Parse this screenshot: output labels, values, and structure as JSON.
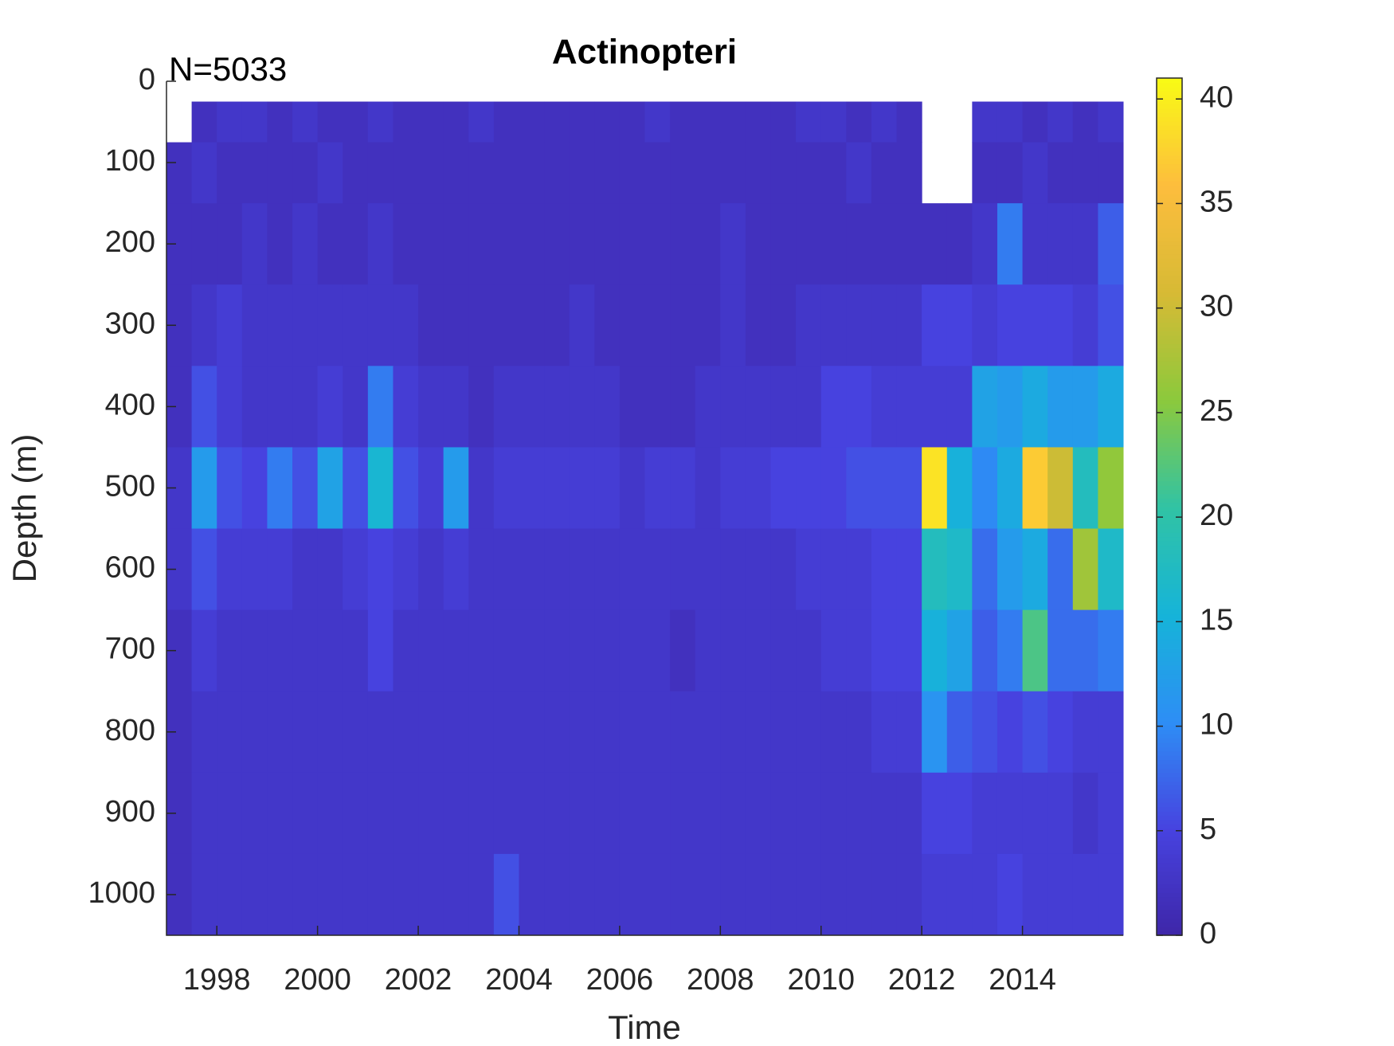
{
  "chart_data": {
    "type": "heatmap",
    "title": "Actinopteri",
    "annotation": "N=5033",
    "x_label": "Time",
    "y_label": "Depth (m)",
    "x_edges": [
      1997,
      1997.5,
      1998,
      1998.5,
      1999,
      1999.5,
      2000,
      2000.5,
      2001,
      2001.5,
      2002,
      2002.5,
      2003,
      2003.5,
      2004,
      2004.5,
      2005,
      2005.5,
      2006,
      2006.5,
      2007,
      2007.5,
      2008,
      2008.5,
      2009,
      2009.5,
      2010,
      2010.5,
      2011,
      2011.5,
      2012,
      2012.5,
      2013,
      2013.5,
      2014,
      2014.5,
      2015,
      2015.5,
      2016
    ],
    "y_edges": [
      25,
      75,
      150,
      250,
      350,
      450,
      550,
      650,
      750,
      850,
      950,
      1050
    ],
    "values": [
      [
        null,
        2,
        3,
        3,
        2,
        3,
        2,
        2,
        3,
        2,
        2,
        2,
        3,
        2,
        2,
        2,
        2,
        2,
        2,
        3,
        2,
        2,
        2,
        2,
        2,
        3,
        3,
        2,
        3,
        2,
        null,
        null,
        3,
        3,
        2,
        3,
        2,
        3
      ],
      [
        2,
        3,
        2,
        2,
        2,
        2,
        3,
        2,
        2,
        2,
        2,
        2,
        2,
        2,
        2,
        2,
        2,
        2,
        2,
        2,
        2,
        2,
        2,
        2,
        2,
        2,
        2,
        3,
        2,
        2,
        null,
        null,
        2,
        2,
        3,
        2,
        2,
        2
      ],
      [
        2,
        2,
        2,
        3,
        2,
        3,
        2,
        2,
        3,
        2,
        2,
        2,
        2,
        2,
        2,
        2,
        2,
        2,
        2,
        2,
        2,
        2,
        3,
        2,
        2,
        2,
        2,
        2,
        2,
        2,
        2,
        2,
        3,
        9,
        3,
        3,
        3,
        7
      ],
      [
        2,
        3,
        4,
        3,
        3,
        3,
        3,
        3,
        3,
        3,
        2,
        2,
        2,
        2,
        2,
        2,
        3,
        2,
        2,
        2,
        2,
        2,
        3,
        2,
        2,
        3,
        3,
        3,
        3,
        3,
        5,
        5,
        4,
        5,
        5,
        5,
        4,
        6
      ],
      [
        2,
        6,
        4,
        3,
        3,
        3,
        4,
        3,
        9,
        4,
        3,
        3,
        2,
        3,
        3,
        3,
        3,
        3,
        2,
        2,
        2,
        3,
        3,
        3,
        3,
        3,
        5,
        5,
        4,
        4,
        4,
        4,
        13,
        12,
        14,
        12,
        12,
        14
      ],
      [
        3,
        12,
        6,
        5,
        9,
        6,
        13,
        6,
        16,
        6,
        4,
        12,
        3,
        4,
        4,
        4,
        4,
        4,
        3,
        4,
        4,
        3,
        4,
        4,
        5,
        5,
        5,
        6,
        6,
        6,
        39,
        15,
        10,
        14,
        37,
        30,
        18,
        26
      ],
      [
        3,
        6,
        4,
        4,
        4,
        3,
        3,
        4,
        5,
        4,
        3,
        4,
        3,
        3,
        3,
        3,
        3,
        3,
        3,
        3,
        3,
        3,
        3,
        3,
        3,
        4,
        4,
        4,
        5,
        5,
        18,
        17,
        8,
        12,
        14,
        8,
        27,
        17
      ],
      [
        2,
        4,
        3,
        3,
        3,
        3,
        3,
        3,
        5,
        3,
        3,
        3,
        3,
        3,
        3,
        3,
        3,
        3,
        3,
        3,
        2,
        3,
        3,
        3,
        3,
        3,
        4,
        4,
        5,
        5,
        15,
        13,
        7,
        9,
        22,
        8,
        8,
        9
      ],
      [
        2,
        3,
        3,
        3,
        3,
        3,
        3,
        3,
        3,
        3,
        3,
        3,
        3,
        3,
        3,
        3,
        3,
        3,
        3,
        3,
        3,
        3,
        3,
        3,
        3,
        3,
        3,
        3,
        4,
        4,
        11,
        7,
        6,
        5,
        6,
        5,
        4,
        4
      ],
      [
        2,
        3,
        3,
        3,
        3,
        3,
        3,
        3,
        3,
        3,
        3,
        3,
        3,
        3,
        3,
        3,
        3,
        3,
        3,
        3,
        3,
        3,
        3,
        3,
        3,
        3,
        3,
        3,
        3,
        3,
        5,
        5,
        4,
        4,
        4,
        4,
        3,
        4
      ],
      [
        2,
        3,
        3,
        3,
        3,
        3,
        3,
        3,
        3,
        3,
        3,
        3,
        3,
        6,
        3,
        3,
        3,
        3,
        3,
        3,
        3,
        3,
        3,
        3,
        3,
        3,
        3,
        3,
        3,
        3,
        4,
        4,
        4,
        5,
        4,
        4,
        4,
        4
      ]
    ],
    "xlim": [
      1997,
      2016
    ],
    "xticks": [
      1998,
      2000,
      2002,
      2004,
      2006,
      2008,
      2010,
      2012,
      2014
    ],
    "ylim": [
      0,
      1050
    ],
    "yticks": [
      0,
      100,
      200,
      300,
      400,
      500,
      600,
      700,
      800,
      900,
      1000
    ],
    "y_reversed": true,
    "clim": [
      0,
      41
    ],
    "cticks": [
      0,
      5,
      10,
      15,
      20,
      25,
      30,
      35,
      40
    ],
    "colormap": [
      "#3e26a8",
      "#4743e0",
      "#2d8ef5",
      "#16b4d8",
      "#31c3a4",
      "#8cc93c",
      "#d7ba35",
      "#fdbd3d",
      "#f9fb15"
    ]
  }
}
